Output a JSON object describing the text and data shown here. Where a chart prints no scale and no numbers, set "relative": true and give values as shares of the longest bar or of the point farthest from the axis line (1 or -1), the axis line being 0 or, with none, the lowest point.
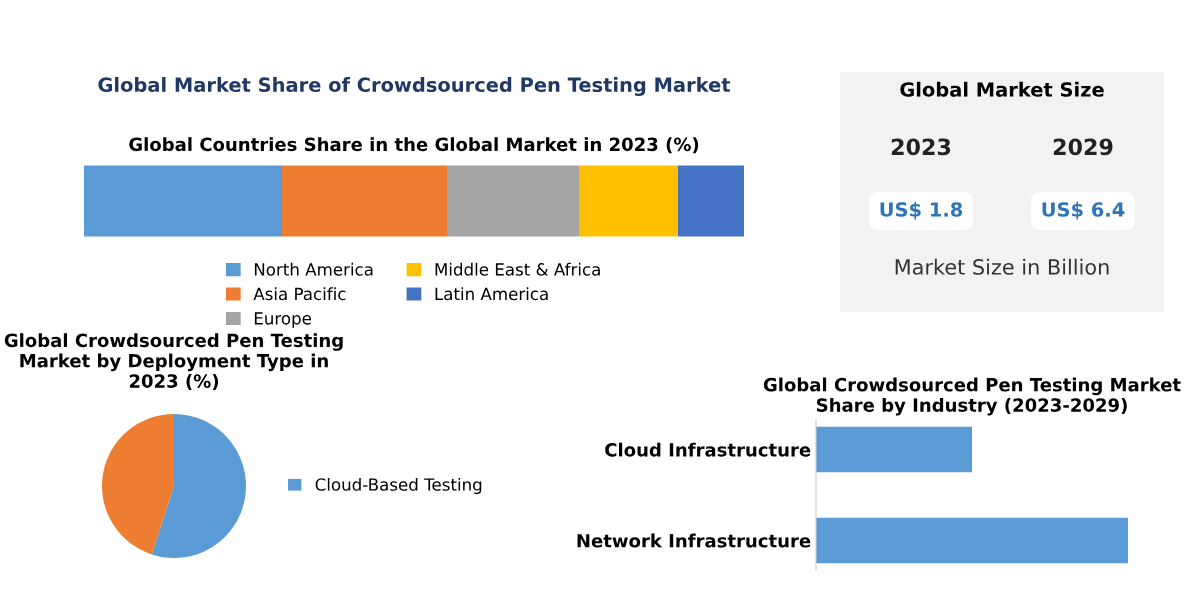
{
  "chart_data": [
    {
      "type": "bar",
      "title": "Global Market Share of Crowdsourced Pen Testing Market",
      "subtitle": "Global Countries Share in the Global Market in 2023 (%)",
      "categories": [
        null
      ],
      "orientation": "horizontal",
      "stacked": true,
      "relative": true,
      "legend": "bottom",
      "series": [
        {
          "name": "North America",
          "color": "#5b9bd5",
          "values": [
            0.3
          ]
        },
        {
          "name": "Asia Pacific",
          "color": "#ed7d31",
          "values": [
            0.25
          ]
        },
        {
          "name": "Europe",
          "color": "#a5a5a5",
          "values": [
            0.2
          ]
        },
        {
          "name": "Middle East & Africa",
          "color": "#ffc000",
          "values": [
            0.15
          ]
        },
        {
          "name": "Latin America",
          "color": "#4472c4",
          "values": [
            0.1
          ]
        }
      ]
    },
    {
      "type": "other",
      "title": "Global Market Size",
      "annotations": [
        "2023",
        "2029",
        "US$ 1.8",
        "US$ 6.4",
        "Market Size in Billion"
      ]
    },
    {
      "type": "pie",
      "title": "Global Crowdsourced Pen Testing Market by Deployment Type in 2023 (%)",
      "categories": [
        "Cloud-Based Testing",
        null
      ],
      "values": [
        55,
        45
      ],
      "colors": [
        "#5b9bd5",
        "#ed7d31"
      ],
      "legend": "right"
    },
    {
      "type": "bar",
      "title": "Global Crowdsourced Pen Testing Market Share by Industry (2023-2029)",
      "orientation": "horizontal",
      "relative": true,
      "categories": [
        "Cloud Infrastructure",
        "Network Infrastructure"
      ],
      "values": [
        0.5,
        1
      ],
      "color": "#5b9bd5"
    }
  ]
}
